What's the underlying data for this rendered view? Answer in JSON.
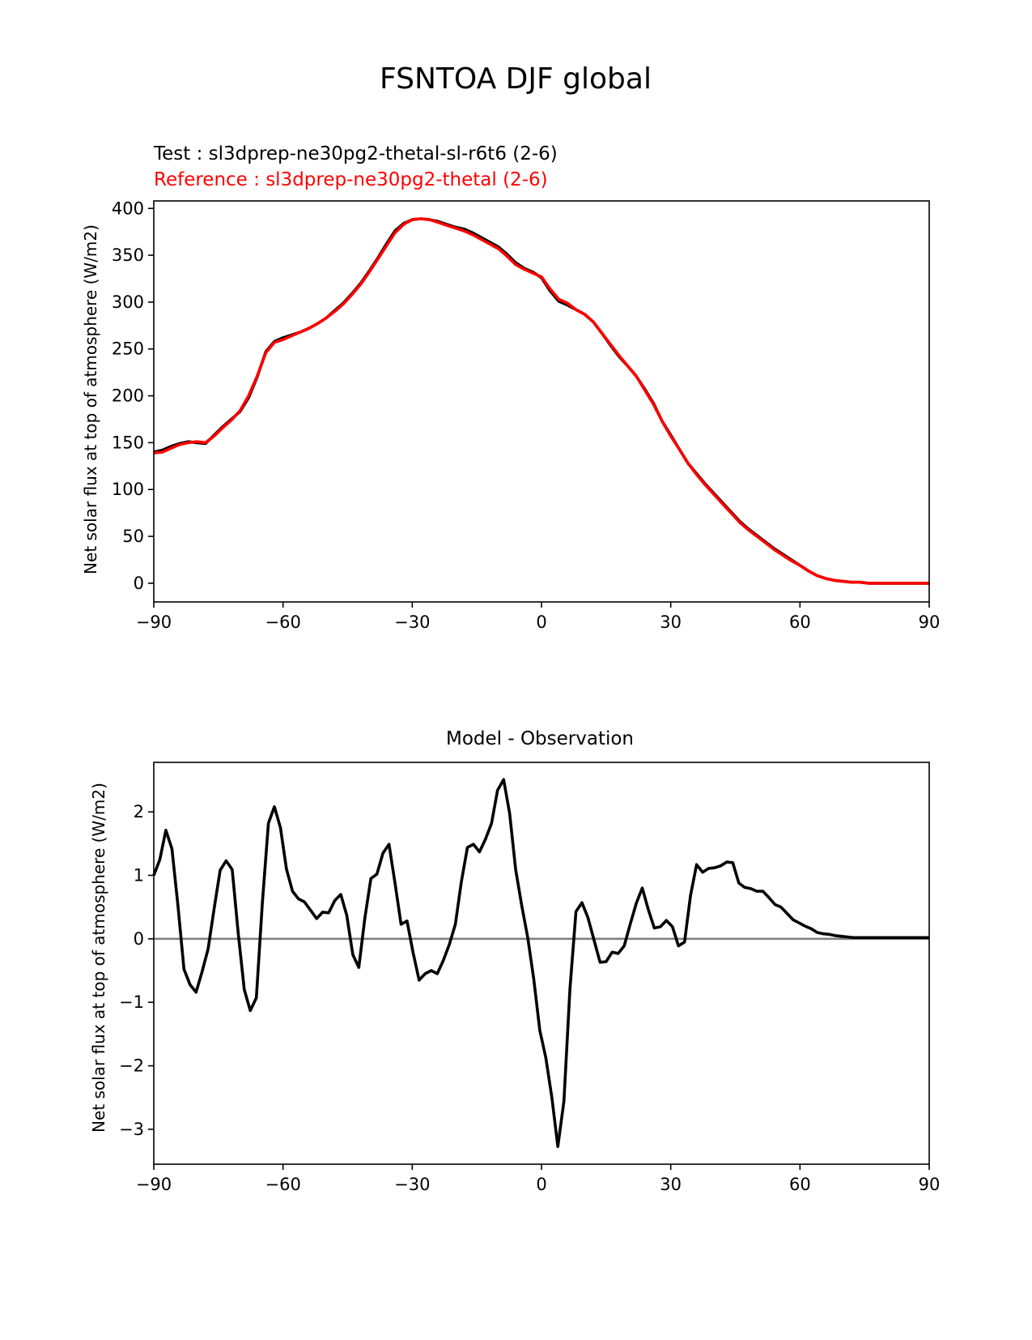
{
  "figure": {
    "title": "FSNTOA DJF global"
  },
  "chart_data": [
    {
      "type": "line",
      "test_label": "Test : sl3dprep-ne30pg2-thetal-sl-r6t6 (2-6)",
      "reference_label": "Reference : sl3dprep-ne30pg2-thetal (2-6)",
      "ylabel": "Net solar flux at top of atmosphere (W/m2)",
      "xlabel": "",
      "xlim": [
        -90,
        90
      ],
      "ylim": [
        -20,
        408
      ],
      "xticks": [
        -90,
        -60,
        -30,
        0,
        30,
        60,
        90
      ],
      "xtick_labels": [
        "−90",
        "−60",
        "−30",
        "0",
        "30",
        "60",
        "90"
      ],
      "yticks": [
        0,
        50,
        100,
        150,
        200,
        250,
        300,
        350,
        400
      ],
      "ytick_labels": [
        "0",
        "50",
        "100",
        "150",
        "200",
        "250",
        "300",
        "350",
        "400"
      ],
      "grid": false,
      "series": [
        {
          "name": "Test",
          "color": "#000000",
          "x": [
            -90,
            -88,
            -86,
            -84,
            -82,
            -80,
            -78,
            -76,
            -74,
            -72,
            -70,
            -68,
            -66,
            -64,
            -62,
            -60,
            -58,
            -56,
            -54,
            -52,
            -50,
            -48,
            -46,
            -44,
            -42,
            -40,
            -38,
            -36,
            -34,
            -32,
            -30,
            -28,
            -26,
            -24,
            -22,
            -20,
            -18,
            -16,
            -14,
            -12,
            -10,
            -8,
            -6,
            -4,
            -2,
            0,
            2,
            4,
            6,
            8,
            10,
            12,
            14,
            16,
            18,
            20,
            22,
            24,
            26,
            28,
            30,
            32,
            34,
            36,
            38,
            40,
            42,
            44,
            46,
            48,
            50,
            52,
            54,
            56,
            58,
            60,
            62,
            64,
            66,
            68,
            70,
            72,
            74,
            76,
            78,
            80,
            82,
            84,
            86,
            88,
            90
          ],
          "y": [
            140,
            142,
            146,
            149,
            151,
            150,
            149,
            158,
            167,
            175,
            183,
            198,
            220,
            247,
            258,
            262,
            265,
            268,
            272,
            277,
            283,
            291,
            299,
            309,
            320,
            333,
            347,
            362,
            376,
            384,
            388,
            389,
            388,
            386,
            383,
            380,
            378,
            374,
            369,
            364,
            359,
            351,
            342,
            336,
            332,
            326,
            312,
            301,
            297,
            292,
            287,
            279,
            267,
            254,
            242,
            232,
            221,
            207,
            192,
            173,
            158,
            143,
            128,
            117,
            106,
            96,
            86,
            76,
            66,
            58,
            51,
            44,
            37,
            31,
            25,
            19,
            13,
            8,
            5,
            3,
            2,
            1,
            1,
            0,
            0,
            0,
            0,
            0,
            0,
            0,
            0
          ]
        },
        {
          "name": "Reference",
          "color": "#ff0000",
          "x": [
            -90,
            -88,
            -86,
            -84,
            -82,
            -80,
            -78,
            -76,
            -74,
            -72,
            -70,
            -68,
            -66,
            -64,
            -62,
            -60,
            -58,
            -56,
            -54,
            -52,
            -50,
            -48,
            -46,
            -44,
            -42,
            -40,
            -38,
            -36,
            -34,
            -32,
            -30,
            -28,
            -26,
            -24,
            -22,
            -20,
            -18,
            -16,
            -14,
            -12,
            -10,
            -8,
            -6,
            -4,
            -2,
            0,
            2,
            4,
            6,
            8,
            10,
            12,
            14,
            16,
            18,
            20,
            22,
            24,
            26,
            28,
            30,
            32,
            34,
            36,
            38,
            40,
            42,
            44,
            46,
            48,
            50,
            52,
            54,
            56,
            58,
            60,
            62,
            64,
            66,
            68,
            70,
            72,
            74,
            76,
            78,
            80,
            82,
            84,
            86,
            88,
            90
          ],
          "y": [
            139,
            140,
            144,
            148,
            150,
            151,
            150,
            157,
            166,
            174,
            184,
            200,
            221,
            246,
            257,
            260,
            264,
            268,
            272,
            277,
            283,
            290,
            298,
            308,
            319,
            332,
            346,
            360,
            374,
            383,
            388,
            389,
            388,
            385,
            382,
            379,
            376,
            372,
            367,
            362,
            357,
            349,
            340,
            335,
            331,
            327,
            314,
            303,
            299,
            292,
            287,
            279,
            267,
            255,
            243,
            232,
            221,
            206,
            191,
            173,
            157,
            143,
            128,
            116,
            105,
            95,
            85,
            75,
            65,
            57,
            50,
            43,
            36,
            30,
            24,
            19,
            13,
            8,
            5,
            3,
            2,
            1,
            1,
            0,
            0,
            0,
            0,
            0,
            0,
            0,
            0
          ]
        }
      ]
    },
    {
      "type": "line",
      "title": "Model - Observation",
      "ylabel": "Net solar flux at top of atmosphere (W/m2)",
      "xlabel": "",
      "xlim": [
        -90,
        90
      ],
      "ylim": [
        -3.55,
        2.78
      ],
      "xticks": [
        -90,
        -60,
        -30,
        0,
        30,
        60,
        90
      ],
      "xtick_labels": [
        "−90",
        "−60",
        "−30",
        "0",
        "30",
        "60",
        "90"
      ],
      "yticks": [
        -3,
        -2,
        -1,
        0,
        1,
        2
      ],
      "ytick_labels": [
        "−3",
        "−2",
        "−1",
        "0",
        "1",
        "2"
      ],
      "grid": false,
      "zero_line_color": "#808080",
      "series": [
        {
          "name": "",
          "color": "#000000",
          "x": [
            -90,
            -88.6,
            -87.2,
            -85.8,
            -84.4,
            -83,
            -81.6,
            -80.2,
            -78.8,
            -77.4,
            -76,
            -74.6,
            -73.2,
            -71.8,
            -70.4,
            -69,
            -67.6,
            -66.2,
            -64.8,
            -63.4,
            -62,
            -60.6,
            -59.2,
            -57.8,
            -56.4,
            -55,
            -53.6,
            -52.2,
            -50.8,
            -49.4,
            -48,
            -46.6,
            -45.2,
            -43.8,
            -42.4,
            -41,
            -39.6,
            -38.2,
            -36.8,
            -35.4,
            -34,
            -32.6,
            -31.2,
            -29.8,
            -28.4,
            -27,
            -25.6,
            -24.2,
            -22.8,
            -21.4,
            -20,
            -18.6,
            -17.2,
            -15.8,
            -14.4,
            -13,
            -11.6,
            -10.2,
            -8.8,
            -7.4,
            -6,
            -4.6,
            -3.2,
            -1.8,
            -0.4,
            1,
            2.4,
            3.8,
            5.2,
            6.6,
            8,
            9.4,
            10.8,
            12.2,
            13.6,
            15,
            16.4,
            17.8,
            19.2,
            20.6,
            22,
            23.4,
            24.8,
            26.2,
            27.6,
            29,
            30.4,
            31.8,
            33.2,
            34.6,
            36,
            37.4,
            38.8,
            40.2,
            41.6,
            43,
            44.4,
            45.8,
            47.2,
            48.6,
            50,
            51.4,
            52.8,
            54.2,
            55.6,
            57,
            58.4,
            59.8,
            61.2,
            62.6,
            64,
            65.4,
            66.8,
            68.2,
            69.6,
            71,
            72.4,
            73.8,
            75.2,
            76.6,
            78,
            79.4,
            80.8,
            82.2,
            83.6,
            85,
            86.4,
            87.8,
            89.2,
            90
          ],
          "y": [
            1.0,
            1.25,
            1.71,
            1.42,
            0.53,
            -0.48,
            -0.72,
            -0.84,
            -0.52,
            -0.16,
            0.47,
            1.08,
            1.23,
            1.09,
            0.09,
            -0.8,
            -1.13,
            -0.93,
            0.56,
            1.82,
            2.08,
            1.75,
            1.1,
            0.75,
            0.63,
            0.58,
            0.45,
            0.32,
            0.42,
            0.41,
            0.6,
            0.7,
            0.37,
            -0.25,
            -0.45,
            0.33,
            0.95,
            1.02,
            1.35,
            1.49,
            0.88,
            0.23,
            0.28,
            -0.22,
            -0.65,
            -0.55,
            -0.5,
            -0.55,
            -0.34,
            -0.09,
            0.23,
            0.9,
            1.44,
            1.49,
            1.37,
            1.57,
            1.82,
            2.34,
            2.51,
            1.98,
            1.09,
            0.53,
            0.02,
            -0.63,
            -1.44,
            -1.87,
            -2.5,
            -3.27,
            -2.56,
            -0.8,
            0.43,
            0.57,
            0.33,
            -0.02,
            -0.37,
            -0.36,
            -0.21,
            -0.23,
            -0.11,
            0.23,
            0.56,
            0.8,
            0.46,
            0.17,
            0.19,
            0.29,
            0.19,
            -0.11,
            -0.05,
            0.68,
            1.17,
            1.05,
            1.11,
            1.12,
            1.15,
            1.21,
            1.2,
            0.88,
            0.81,
            0.79,
            0.75,
            0.75,
            0.65,
            0.54,
            0.5,
            0.4,
            0.3,
            0.25,
            0.2,
            0.16,
            0.1,
            0.08,
            0.07,
            0.05,
            0.04,
            0.03,
            0.02,
            0.02,
            0.02,
            0.02,
            0.02,
            0.02,
            0.02,
            0.02,
            0.02,
            0.02,
            0.02,
            0.02,
            0.02,
            0.02
          ]
        }
      ]
    }
  ]
}
